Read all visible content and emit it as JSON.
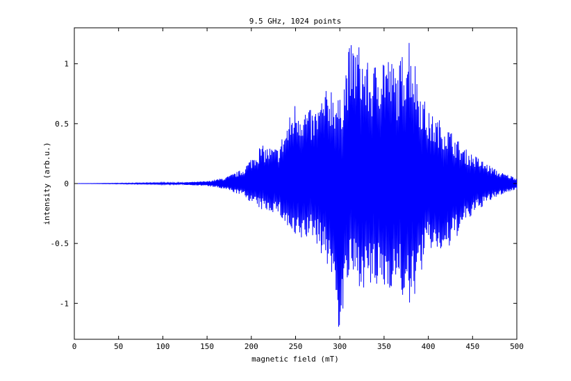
{
  "chart_data": {
    "type": "line",
    "title": "9.5 GHz, 1024 points",
    "xlabel": "magnetic field (mT)",
    "ylabel": "intensity (arb.u.)",
    "xlim": [
      0,
      500
    ],
    "ylim": [
      -1.3,
      1.3
    ],
    "xticks": [
      0,
      50,
      100,
      150,
      200,
      250,
      300,
      350,
      400,
      450,
      500
    ],
    "xtick_labels": [
      "0",
      "50",
      "100",
      "150",
      "200",
      "250",
      "300",
      "350",
      "400",
      "450",
      "500"
    ],
    "yticks": [
      -1,
      -0.5,
      0,
      0.5,
      1
    ],
    "ytick_labels": [
      "-1",
      "-0.5",
      "0",
      "0.5",
      "1"
    ],
    "grid": false,
    "line_color": "#0000ff",
    "envelope": {
      "x": [
        0,
        80,
        120,
        150,
        170,
        190,
        210,
        230,
        250,
        270,
        290,
        300,
        310,
        320,
        335,
        350,
        365,
        378,
        390,
        400,
        420,
        440,
        460,
        480,
        500
      ],
      "upper": [
        0.0,
        0.005,
        0.01,
        0.02,
        0.05,
        0.12,
        0.32,
        0.3,
        0.7,
        0.6,
        0.85,
        0.7,
        1.15,
        1.2,
        0.95,
        1.15,
        0.95,
        1.3,
        0.85,
        0.6,
        0.5,
        0.3,
        0.2,
        0.1,
        0.05
      ],
      "lower": [
        0.0,
        -0.005,
        -0.01,
        -0.02,
        -0.05,
        -0.1,
        -0.22,
        -0.25,
        -0.5,
        -0.45,
        -0.75,
        -1.3,
        -0.8,
        -0.85,
        -0.9,
        -0.9,
        -0.85,
        -1.1,
        -0.8,
        -0.55,
        -0.6,
        -0.35,
        -0.2,
        -0.1,
        -0.05
      ]
    }
  }
}
